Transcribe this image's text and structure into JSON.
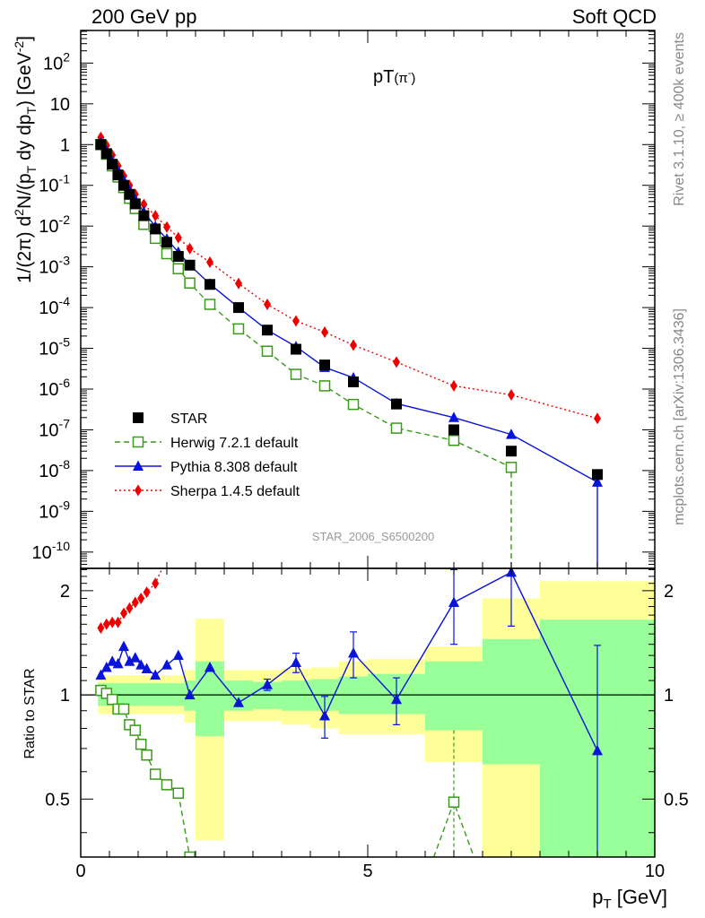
{
  "header": {
    "left": "200 GeV pp",
    "right": "Soft QCD"
  },
  "side_labels": {
    "rivet": "Rivet 3.1.10, ≥ 400k events",
    "source": "mcplots.cern.ch [arXiv:1306.3436]"
  },
  "analysis_id": "STAR_2006_S6500200",
  "colors": {
    "star": "#000000",
    "herwig": "#3a9a1a",
    "pythia": "#0a14d8",
    "sherpa": "#ee0000",
    "band_outer": "#ffff99",
    "band_inner": "#99ff99"
  },
  "chart_data": [
    {
      "type": "scatter",
      "title": "pT(π⁻)",
      "title_parts": {
        "main": "pT",
        "paren": "(π",
        "sup": "-",
        "close": ")"
      },
      "ylabel_parts": [
        "1/(2π) d",
        "2",
        "N/(p",
        "T",
        " dy dp",
        "T",
        ") [GeV",
        "-2",
        "]"
      ],
      "xlim": [
        0,
        10
      ],
      "ylim_log10": [
        -10.4,
        2.8
      ],
      "yscale": "log",
      "y_ticks": [
        {
          "exp": -10,
          "label": "10",
          "sup": "-10"
        },
        {
          "exp": -9,
          "label": "10",
          "sup": "-9"
        },
        {
          "exp": -8,
          "label": "10",
          "sup": "-8"
        },
        {
          "exp": -7,
          "label": "10",
          "sup": "-7"
        },
        {
          "exp": -6,
          "label": "10",
          "sup": "-6"
        },
        {
          "exp": -5,
          "label": "10",
          "sup": "-5"
        },
        {
          "exp": -4,
          "label": "10",
          "sup": "-4"
        },
        {
          "exp": -3,
          "label": "10",
          "sup": "-3"
        },
        {
          "exp": -2,
          "label": "10",
          "sup": "-2"
        },
        {
          "exp": -1,
          "label": "10",
          "sup": "-1"
        },
        {
          "exp": 0,
          "label": "1",
          "sup": ""
        },
        {
          "exp": 1,
          "label": "10",
          "sup": ""
        },
        {
          "exp": 2,
          "label": "10",
          "sup": "2"
        }
      ],
      "legend": {
        "placement": "bottom-left",
        "entries": [
          {
            "key": "star",
            "label": "STAR"
          },
          {
            "key": "herwig",
            "label": "Herwig 7.2.1 default"
          },
          {
            "key": "pythia",
            "label": "Pythia 8.308 default"
          },
          {
            "key": "sherpa",
            "label": "Sherpa 1.4.5 default"
          }
        ]
      },
      "series": [
        {
          "name": "STAR",
          "key": "star",
          "marker": "square-filled",
          "line": "none",
          "x": [
            0.35,
            0.45,
            0.55,
            0.65,
            0.75,
            0.85,
            0.95,
            1.1,
            1.3,
            1.5,
            1.7,
            1.9,
            2.25,
            2.75,
            3.25,
            3.75,
            4.25,
            4.75,
            5.5,
            6.5,
            7.5,
            9.0
          ],
          "y": [
            1.0,
            0.6,
            0.33,
            0.18,
            0.1,
            0.06,
            0.035,
            0.018,
            0.0085,
            0.004,
            0.0018,
            0.0011,
            0.00037,
            0.0001,
            2.8e-05,
            9.5e-06,
            3.9e-06,
            1.5e-06,
            4.3e-07,
            1e-07,
            3e-08,
            8e-09
          ]
        },
        {
          "name": "Herwig 7.2.1 default",
          "key": "herwig",
          "marker": "square-open",
          "line": "dashed",
          "x": [
            0.35,
            0.45,
            0.55,
            0.65,
            0.75,
            0.85,
            0.95,
            1.1,
            1.3,
            1.5,
            1.7,
            1.9,
            2.25,
            2.75,
            3.25,
            3.75,
            4.25,
            4.75,
            5.5,
            6.5,
            7.5
          ],
          "y": [
            1.0,
            0.58,
            0.3,
            0.16,
            0.088,
            0.048,
            0.027,
            0.011,
            0.005,
            0.0021,
            0.0009,
            0.0004,
            0.00012,
            3e-05,
            8.5e-06,
            2.3e-06,
            1.2e-06,
            4.2e-07,
            1.1e-07,
            5.5e-08,
            1.2e-08
          ],
          "tail_to_bottom_x": 7.5
        },
        {
          "name": "Pythia 8.308 default",
          "key": "pythia",
          "marker": "triangle-filled",
          "line": "solid",
          "x": [
            0.35,
            0.45,
            0.55,
            0.65,
            0.75,
            0.85,
            0.95,
            1.1,
            1.3,
            1.5,
            1.7,
            1.9,
            2.25,
            2.75,
            3.25,
            3.75,
            4.25,
            4.75,
            5.5,
            6.5,
            7.5,
            9.0
          ],
          "y": [
            1.1,
            0.7,
            0.4,
            0.23,
            0.13,
            0.075,
            0.045,
            0.022,
            0.0098,
            0.0048,
            0.0023,
            0.0011,
            0.00038,
            0.0001,
            2.8e-05,
            1.1e-05,
            3.4e-06,
            1.9e-06,
            4.4e-07,
            2e-07,
            7.7e-08,
            5.2e-09
          ],
          "tail_to_bottom_x": 9.0
        },
        {
          "name": "Sherpa 1.4.5 default",
          "key": "sherpa",
          "marker": "diamond-filled",
          "line": "dotted",
          "x": [
            0.35,
            0.45,
            0.55,
            0.65,
            0.75,
            0.85,
            0.95,
            1.1,
            1.3,
            1.5,
            1.7,
            1.9,
            2.25,
            2.75,
            3.25,
            3.75,
            4.25,
            4.75,
            5.5,
            6.5,
            7.5,
            9.0
          ],
          "y": [
            1.5,
            0.95,
            0.55,
            0.3,
            0.17,
            0.1,
            0.06,
            0.034,
            0.018,
            0.0095,
            0.0052,
            0.0028,
            0.0013,
            0.00039,
            0.00012,
            4.7e-05,
            2.5e-05,
            1.2e-05,
            4.6e-06,
            1.2e-06,
            7.2e-07,
            1.9e-07
          ]
        }
      ]
    },
    {
      "type": "scatter",
      "title": "Ratio to STAR",
      "ylabel": "Ratio to STAR",
      "xlabel_main": "p",
      "xlabel_sub": "T",
      "xlabel_unit": " [GeV]",
      "xlim": [
        0,
        10
      ],
      "ylim": [
        0.34,
        2.32
      ],
      "x_ticks": [
        0,
        5,
        10
      ],
      "y_ticks": [
        0.5,
        1,
        2
      ],
      "reference_line": 1,
      "bands": [
        {
          "x0": 0.3,
          "x1": 1.8,
          "outer": [
            0.88,
            1.14
          ],
          "inner": [
            0.93,
            1.08
          ]
        },
        {
          "x0": 1.8,
          "x1": 2.0,
          "outer": [
            0.83,
            1.18
          ],
          "inner": [
            0.9,
            1.1
          ]
        },
        {
          "x0": 2.0,
          "x1": 2.5,
          "outer": [
            0.38,
            1.66
          ],
          "inner": [
            0.76,
            1.25
          ]
        },
        {
          "x0": 2.5,
          "x1": 3.0,
          "outer": [
            0.84,
            1.18
          ],
          "inner": [
            0.9,
            1.1
          ]
        },
        {
          "x0": 3.0,
          "x1": 3.5,
          "outer": [
            0.84,
            1.18
          ],
          "inner": [
            0.91,
            1.09
          ]
        },
        {
          "x0": 3.5,
          "x1": 4.0,
          "outer": [
            0.82,
            1.19
          ],
          "inner": [
            0.9,
            1.1
          ]
        },
        {
          "x0": 4.0,
          "x1": 4.5,
          "outer": [
            0.8,
            1.2
          ],
          "inner": [
            0.9,
            1.11
          ]
        },
        {
          "x0": 4.5,
          "x1": 5.0,
          "outer": [
            0.77,
            1.25
          ],
          "inner": [
            0.88,
            1.13
          ]
        },
        {
          "x0": 5.0,
          "x1": 6.0,
          "outer": [
            0.77,
            1.27
          ],
          "inner": [
            0.88,
            1.15
          ]
        },
        {
          "x0": 6.0,
          "x1": 7.0,
          "outer": [
            0.64,
            1.38
          ],
          "inner": [
            0.79,
            1.25
          ]
        },
        {
          "x0": 7.0,
          "x1": 8.0,
          "outer": [
            0.34,
            1.9
          ],
          "inner": [
            0.63,
            1.45
          ]
        },
        {
          "x0": 8.0,
          "x1": 10.0,
          "outer": [
            0.34,
            2.13
          ],
          "inner": [
            0.34,
            1.65
          ]
        }
      ],
      "series": [
        {
          "name": "Herwig 7.2.1 default",
          "key": "herwig",
          "marker": "square-open",
          "line": "dashed",
          "x": [
            0.35,
            0.45,
            0.55,
            0.65,
            0.75,
            0.85,
            0.95,
            1.05,
            1.15,
            1.3,
            1.5,
            1.7,
            1.9,
            6.5
          ],
          "y": [
            1.03,
            1.01,
            0.97,
            0.91,
            0.91,
            0.82,
            0.79,
            0.72,
            0.67,
            0.59,
            0.55,
            0.52,
            0.34,
            0.49
          ]
        },
        {
          "name": "Pythia 8.308 default",
          "key": "pythia",
          "marker": "triangle-filled",
          "line": "solid",
          "x": [
            0.35,
            0.45,
            0.55,
            0.65,
            0.75,
            0.85,
            0.95,
            1.05,
            1.15,
            1.3,
            1.5,
            1.7,
            1.9,
            2.25,
            2.75,
            3.25,
            3.75,
            4.25,
            4.75,
            5.5,
            6.5,
            7.5,
            9.0
          ],
          "y": [
            1.14,
            1.2,
            1.25,
            1.23,
            1.38,
            1.25,
            1.28,
            1.22,
            1.19,
            1.14,
            1.22,
            1.3,
            1.0,
            1.2,
            0.95,
            1.07,
            1.24,
            0.87,
            1.32,
            0.97,
            1.85,
            2.26,
            0.69
          ],
          "err": [
            null,
            null,
            null,
            null,
            null,
            null,
            null,
            null,
            null,
            null,
            null,
            null,
            null,
            null,
            null,
            0.04,
            0.08,
            0.12,
            0.2,
            0.15,
            0.45,
            0.68,
            0.7
          ]
        },
        {
          "name": "Sherpa 1.4.5 default",
          "key": "sherpa",
          "marker": "diamond-filled",
          "line": "dotted",
          "x": [
            0.35,
            0.45,
            0.55,
            0.65,
            0.75,
            0.85,
            0.95,
            1.05,
            1.15,
            1.3
          ],
          "y": [
            1.56,
            1.6,
            1.62,
            1.62,
            1.72,
            1.78,
            1.85,
            1.9,
            1.98,
            2.1
          ]
        }
      ]
    }
  ]
}
